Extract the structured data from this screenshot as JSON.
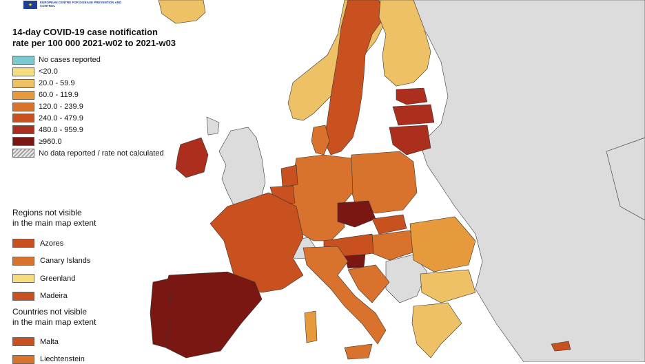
{
  "header": {
    "logo_text": "EUROPEAN CENTRE FOR DISEASE PREVENTION AND CONTROL",
    "title_line1": "14-day COVID-19 case notification",
    "title_line2": "rate per 100 000 2021-w02 to 2021-w03"
  },
  "legend": {
    "items": [
      {
        "label": "No cases reported",
        "color": "#7ec8cf"
      },
      {
        "label": "<20.0",
        "color": "#f6dc7c"
      },
      {
        "label": "20.0 - 59.9",
        "color": "#eec166"
      },
      {
        "label": "60.0 - 119.9",
        "color": "#e69a3b"
      },
      {
        "label": "120.0 - 239.9",
        "color": "#d9722c"
      },
      {
        "label": "240.0 - 479.9",
        "color": "#c8511f"
      },
      {
        "label": "480.0 - 959.9",
        "color": "#ac2f1d"
      },
      {
        "label": "≥960.0",
        "color": "#7a1712"
      },
      {
        "label": "No data reported / rate not calculated",
        "color": "hatch"
      }
    ]
  },
  "regions_section": {
    "title_line1": "Regions not visible",
    "title_line2": "in the main map extent",
    "items": [
      {
        "label": "Azores",
        "color": "#c8511f"
      },
      {
        "label": "Canary Islands",
        "color": "#d9722c"
      },
      {
        "label": "Greenland",
        "color": "#f6dc7c"
      },
      {
        "label": "Madeira",
        "color": "#c8511f"
      }
    ]
  },
  "countries_section": {
    "title_line1": "Countries not visible",
    "title_line2": "in the main map extent",
    "items": [
      {
        "label": "Malta",
        "color": "#c8511f"
      },
      {
        "label": "Liechtenstein",
        "color": "#d9722c"
      }
    ]
  },
  "map_colors": {
    "sea": "#ffffff",
    "non_eu_land": "#dcdcdc",
    "border": "#222222"
  }
}
